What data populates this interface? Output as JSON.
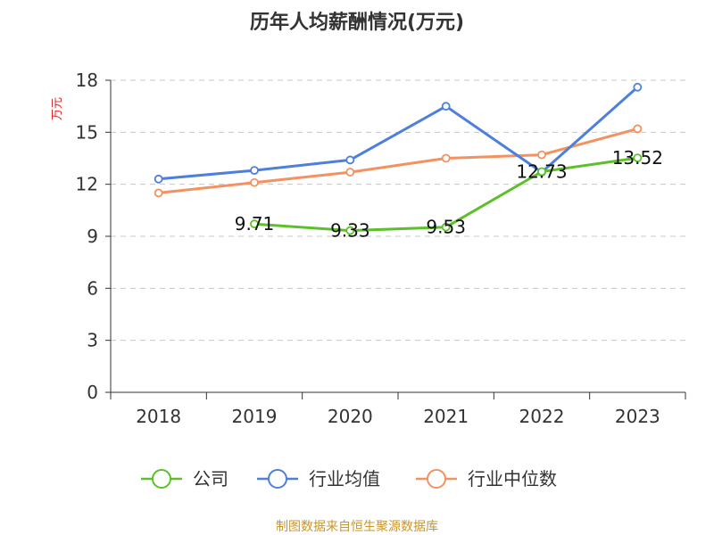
{
  "chart_data": {
    "type": "line",
    "title": "历年人均薪酬情况(万元)",
    "ylabel": "万元",
    "xlabel": "",
    "categories": [
      "2018",
      "2019",
      "2020",
      "2021",
      "2022",
      "2023"
    ],
    "ylim": [
      0,
      18
    ],
    "yticks": [
      0,
      3,
      6,
      9,
      12,
      15,
      18
    ],
    "grid": true,
    "legend_position": "bottom",
    "series": [
      {
        "name": "公司",
        "color": "#5cc02a",
        "values": [
          null,
          9.71,
          9.33,
          9.53,
          12.73,
          13.52
        ],
        "labels": [
          "",
          "9.71",
          "9.33",
          "9.53",
          "12.73",
          "13.52"
        ]
      },
      {
        "name": "行业均值",
        "color": "#4e7fdc",
        "values": [
          12.3,
          12.8,
          13.4,
          16.5,
          12.7,
          17.6
        ],
        "labels": [
          "",
          "",
          "",
          "",
          "",
          ""
        ]
      },
      {
        "name": "行业中位数",
        "color": "#f39260",
        "values": [
          11.5,
          12.1,
          12.7,
          13.5,
          13.7,
          15.2
        ],
        "labels": [
          "",
          "",
          "",
          "",
          "",
          ""
        ]
      }
    ]
  },
  "source": "制图数据来自恒生聚源数据库"
}
